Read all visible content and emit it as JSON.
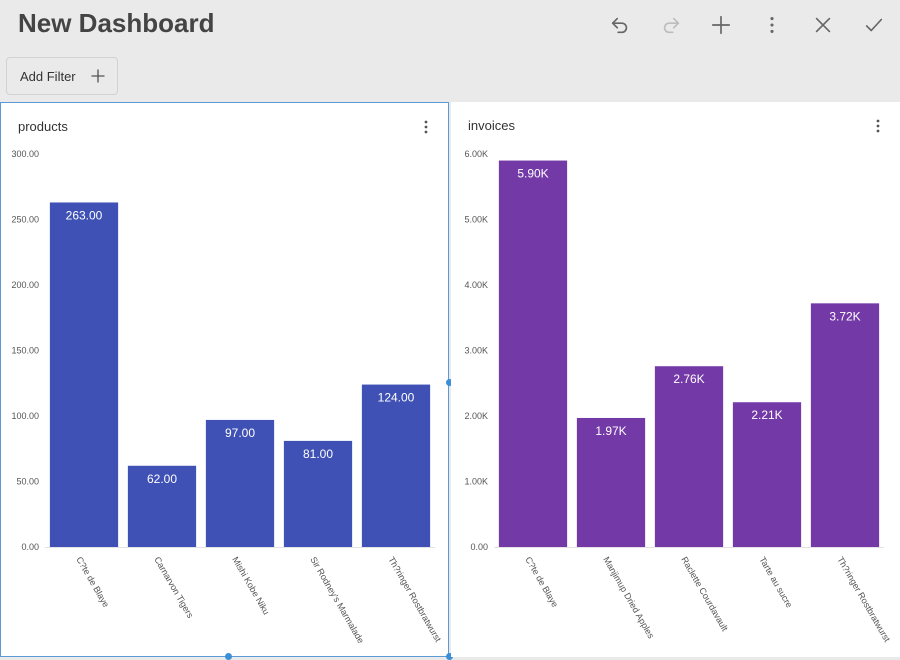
{
  "header": {
    "title": "New Dashboard",
    "icons": [
      "undo-icon",
      "redo-icon",
      "add-icon",
      "more-vertical-icon",
      "close-icon",
      "check-icon"
    ]
  },
  "filter": {
    "label": "Add Filter",
    "icon": "plus-icon"
  },
  "panels": [
    {
      "title": "products",
      "menu_icon": "more-vertical-icon"
    },
    {
      "title": "invoices",
      "menu_icon": "more-vertical-icon"
    }
  ],
  "colors": {
    "products_bar": "#3f51b5",
    "invoices_bar": "#7339a7",
    "selection_border": "#5b9bd5"
  },
  "chart_data": [
    {
      "type": "bar",
      "title": "products",
      "categories": [
        "C?te de Blaye",
        "Carnarvon Tigers",
        "Mishi Kobe Niku",
        "Sir Rodney's Marmalade",
        "Th?ringer Rostbratwurst"
      ],
      "values": [
        263,
        62,
        97,
        81,
        124
      ],
      "data_labels": [
        "263.00",
        "62.00",
        "97.00",
        "81.00",
        "124.00"
      ],
      "y_ticks": [
        "0.00",
        "50.00",
        "100.00",
        "150.00",
        "200.00",
        "250.00",
        "300.00"
      ],
      "ylim": [
        0,
        300
      ],
      "grid": false
    },
    {
      "type": "bar",
      "title": "invoices",
      "categories": [
        "C?te de Blaye",
        "Manjimup Dried Apples",
        "Raclette Courdavault",
        "Tarte au sucre",
        "Th?ringer Rostbratwurst"
      ],
      "values": [
        5900,
        1970,
        2760,
        2210,
        3720
      ],
      "data_labels": [
        "5.90K",
        "1.97K",
        "2.76K",
        "2.21K",
        "3.72K"
      ],
      "y_ticks": [
        "0.00",
        "1.00K",
        "2.00K",
        "3.00K",
        "4.00K",
        "5.00K",
        "6.00K"
      ],
      "ylim": [
        0,
        6000
      ],
      "grid": false
    }
  ]
}
